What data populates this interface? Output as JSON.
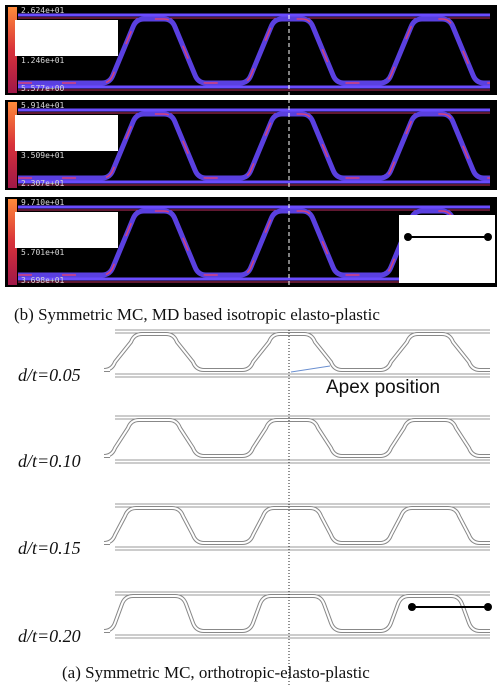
{
  "panel_b": {
    "caption": "(b)   Symmetric MC, MD based isotropic elasto-plastic",
    "colorbars": [
      [
        "2.624e+01",
        "1.246e+01",
        "5.577e+00"
      ],
      [
        "5.914e+01",
        "3.509e+01",
        "2.307e+01"
      ],
      [
        "9.710e+01",
        "5.701e+01",
        "3.698e+01"
      ]
    ]
  },
  "panel_a": {
    "caption": "(a) Symmetric MC, orthotropic-elasto-plastic",
    "labels": [
      "d/t=0.05",
      "d/t=0.10",
      "d/t=0.15",
      "d/t=0.20"
    ],
    "annotation": "Apex position"
  }
}
